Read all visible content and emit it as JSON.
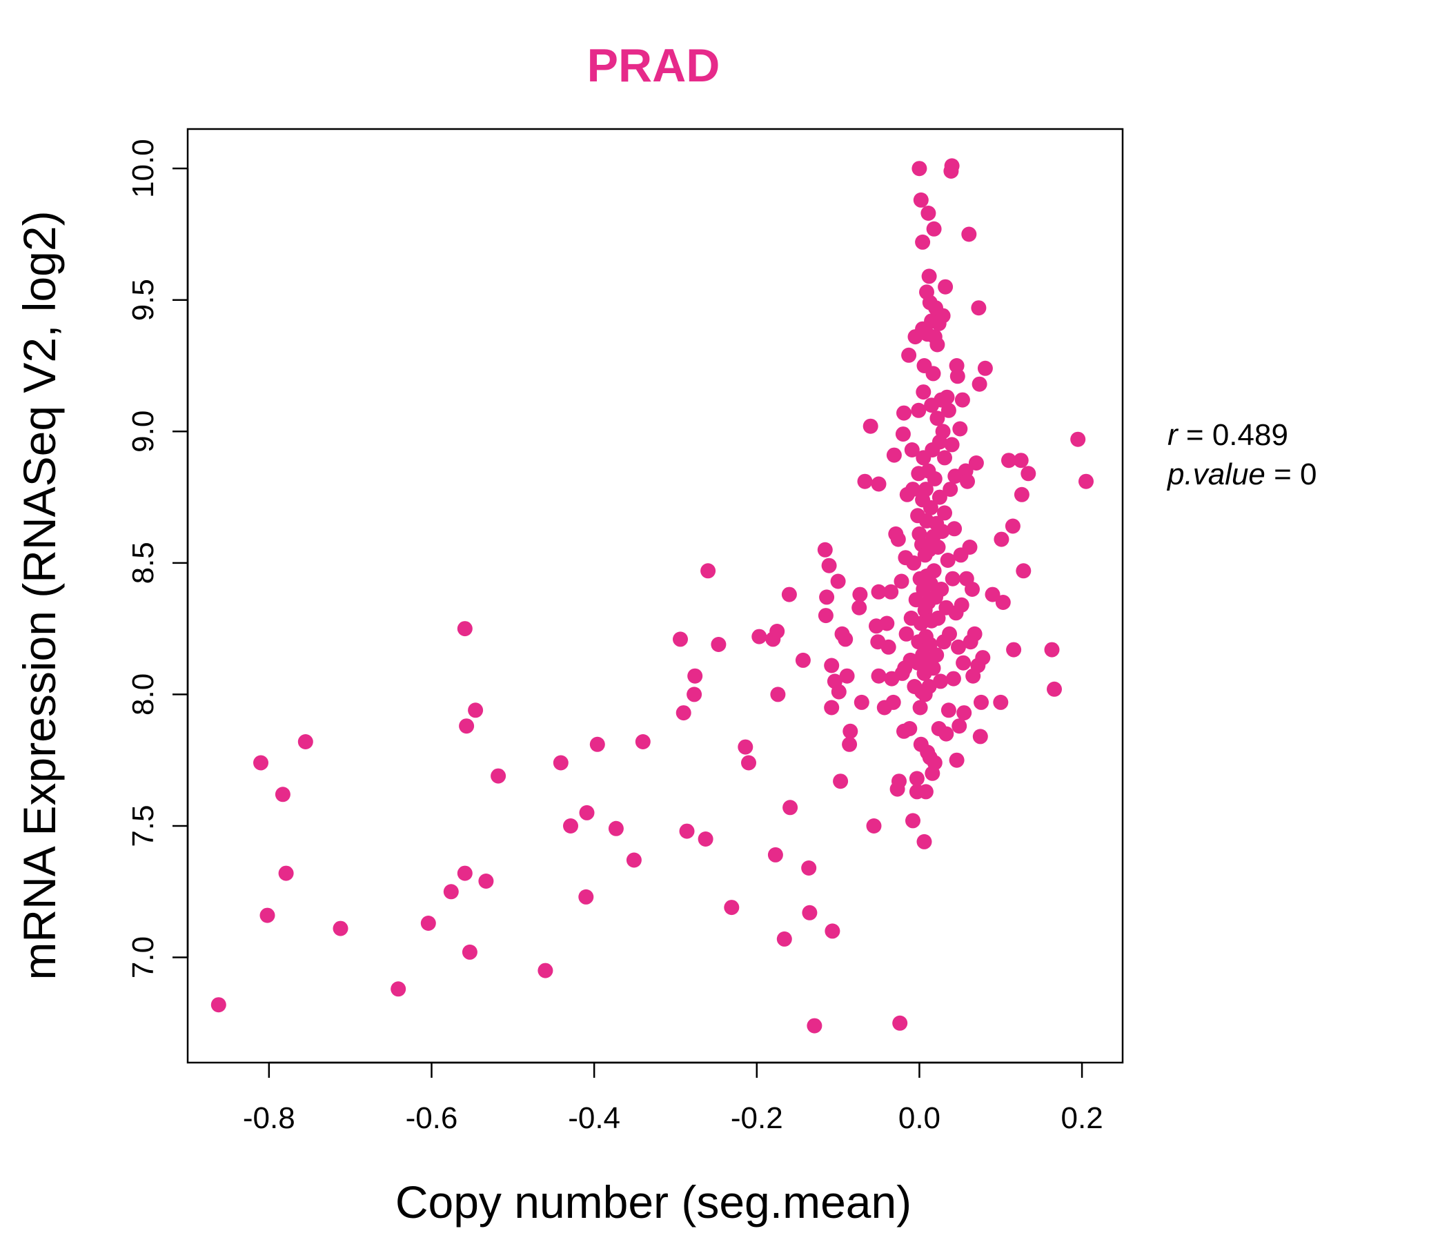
{
  "chart_data": {
    "type": "scatter",
    "title": "PRAD",
    "xlabel": "Copy number (seg.mean)",
    "ylabel": "mRNA Expression (RNASeq V2, log2)",
    "xlim": [
      -0.9,
      0.25
    ],
    "ylim": [
      6.6,
      10.15
    ],
    "xticks": [
      -0.8,
      -0.6,
      -0.4,
      -0.2,
      0.0,
      0.2
    ],
    "xtick_labels": [
      "-0.8",
      "-0.6",
      "-0.4",
      "-0.2",
      "0.0",
      "0.2"
    ],
    "yticks": [
      7.0,
      7.5,
      8.0,
      8.5,
      9.0,
      9.5,
      10.0
    ],
    "ytick_labels": [
      "7.0",
      "7.5",
      "8.0",
      "8.5",
      "9.0",
      "9.5",
      "10.0"
    ],
    "grid": false,
    "colors": {
      "points": "#e62a8a",
      "title": "#e62a8a",
      "axis": "#000000"
    },
    "annotations": {
      "r_label": "r",
      "r_value": "0.489",
      "p_label": "p.value",
      "p_value": "0"
    },
    "series": [
      {
        "points": [
          [
            -0.862,
            6.82
          ],
          [
            -0.81,
            7.74
          ],
          [
            -0.802,
            7.16
          ],
          [
            -0.783,
            7.62
          ],
          [
            -0.779,
            7.32
          ],
          [
            -0.755,
            7.82
          ],
          [
            -0.712,
            7.11
          ],
          [
            -0.641,
            6.88
          ],
          [
            -0.604,
            7.13
          ],
          [
            -0.576,
            7.25
          ],
          [
            -0.559,
            8.25
          ],
          [
            -0.559,
            7.32
          ],
          [
            -0.557,
            7.88
          ],
          [
            -0.553,
            7.02
          ],
          [
            -0.546,
            7.94
          ],
          [
            -0.533,
            7.29
          ],
          [
            -0.518,
            7.69
          ],
          [
            -0.46,
            6.95
          ],
          [
            -0.441,
            7.74
          ],
          [
            -0.429,
            7.5
          ],
          [
            -0.41,
            7.23
          ],
          [
            -0.409,
            7.55
          ],
          [
            -0.396,
            7.81
          ],
          [
            -0.373,
            7.49
          ],
          [
            -0.351,
            7.37
          ],
          [
            -0.34,
            7.82
          ],
          [
            -0.294,
            8.21
          ],
          [
            -0.29,
            7.93
          ],
          [
            -0.286,
            7.48
          ],
          [
            -0.277,
            8.0
          ],
          [
            -0.276,
            8.07
          ],
          [
            -0.263,
            7.45
          ],
          [
            -0.26,
            8.47
          ],
          [
            -0.247,
            8.19
          ],
          [
            -0.231,
            7.19
          ],
          [
            -0.214,
            7.8
          ],
          [
            -0.21,
            7.74
          ],
          [
            -0.197,
            8.22
          ],
          [
            -0.18,
            8.21
          ],
          [
            -0.177,
            7.39
          ],
          [
            -0.175,
            8.24
          ],
          [
            -0.174,
            8.0
          ],
          [
            -0.166,
            7.07
          ],
          [
            -0.16,
            8.38
          ],
          [
            -0.159,
            7.57
          ],
          [
            -0.143,
            8.13
          ],
          [
            -0.136,
            7.34
          ],
          [
            -0.135,
            7.17
          ],
          [
            -0.129,
            6.74
          ],
          [
            -0.116,
            8.55
          ],
          [
            -0.114,
            8.37
          ],
          [
            -0.115,
            8.3
          ],
          [
            -0.111,
            8.49
          ],
          [
            -0.108,
            8.11
          ],
          [
            -0.108,
            7.95
          ],
          [
            -0.107,
            7.1
          ],
          [
            -0.104,
            8.05
          ],
          [
            -0.1,
            8.43
          ],
          [
            -0.099,
            8.01
          ],
          [
            -0.097,
            7.67
          ],
          [
            -0.095,
            8.23
          ],
          [
            -0.091,
            8.21
          ],
          [
            -0.089,
            8.07
          ],
          [
            -0.086,
            7.81
          ],
          [
            -0.085,
            7.86
          ],
          [
            -0.074,
            8.33
          ],
          [
            -0.073,
            8.38
          ],
          [
            -0.071,
            7.97
          ],
          [
            -0.067,
            8.81
          ],
          [
            -0.06,
            9.02
          ],
          [
            -0.056,
            7.5
          ],
          [
            -0.053,
            8.26
          ],
          [
            -0.051,
            8.2
          ],
          [
            -0.05,
            8.8
          ],
          [
            -0.05,
            8.07
          ],
          [
            -0.05,
            8.39
          ],
          [
            -0.043,
            7.95
          ],
          [
            -0.04,
            8.27
          ],
          [
            -0.038,
            8.18
          ],
          [
            -0.035,
            8.39
          ],
          [
            -0.034,
            8.06
          ],
          [
            -0.032,
            7.97
          ],
          [
            -0.031,
            8.91
          ],
          [
            -0.029,
            8.61
          ],
          [
            -0.027,
            7.64
          ],
          [
            -0.026,
            8.59
          ],
          [
            -0.025,
            7.67
          ],
          [
            -0.024,
            6.75
          ],
          [
            -0.022,
            8.43
          ],
          [
            -0.021,
            8.08
          ],
          [
            -0.02,
            8.99
          ],
          [
            -0.019,
            7.86
          ],
          [
            -0.019,
            9.07
          ],
          [
            -0.018,
            8.1
          ],
          [
            -0.017,
            8.52
          ],
          [
            -0.016,
            8.23
          ],
          [
            -0.015,
            8.76
          ],
          [
            -0.013,
            9.29
          ],
          [
            -0.012,
            7.87
          ],
          [
            -0.011,
            8.13
          ],
          [
            -0.01,
            8.29
          ],
          [
            -0.009,
            8.93
          ],
          [
            -0.008,
            7.52
          ],
          [
            -0.008,
            8.78
          ],
          [
            -0.007,
            8.5
          ],
          [
            -0.006,
            8.03
          ],
          [
            -0.005,
            9.36
          ],
          [
            -0.004,
            8.36
          ],
          [
            -0.003,
            7.63
          ],
          [
            -0.003,
            7.68
          ],
          [
            -0.002,
            8.12
          ],
          [
            -0.002,
            8.68
          ],
          [
            -0.001,
            8.84
          ],
          [
            -0.001,
            9.08
          ],
          [
            -0.001,
            8.2
          ],
          [
            0.0,
            10.0
          ],
          [
            0.0,
            8.61
          ],
          [
            0.001,
            7.95
          ],
          [
            0.001,
            8.44
          ],
          [
            0.002,
            7.81
          ],
          [
            0.002,
            9.88
          ],
          [
            0.002,
            8.27
          ],
          [
            0.003,
            8.01
          ],
          [
            0.003,
            8.57
          ],
          [
            0.004,
            9.72
          ],
          [
            0.004,
            9.39
          ],
          [
            0.004,
            8.15
          ],
          [
            0.004,
            8.74
          ],
          [
            0.005,
            9.15
          ],
          [
            0.005,
            8.4
          ],
          [
            0.005,
            8.9
          ],
          [
            0.006,
            7.44
          ],
          [
            0.006,
            8.08
          ],
          [
            0.006,
            9.25
          ],
          [
            0.007,
            8.32
          ],
          [
            0.007,
            8.53
          ],
          [
            0.007,
            8.0
          ],
          [
            0.008,
            7.63
          ],
          [
            0.008,
            8.22
          ],
          [
            0.008,
            8.78
          ],
          [
            0.009,
            9.53
          ],
          [
            0.009,
            8.66
          ],
          [
            0.009,
            8.45
          ],
          [
            0.01,
            8.12
          ],
          [
            0.01,
            9.37
          ],
          [
            0.01,
            7.78
          ],
          [
            0.011,
            9.83
          ],
          [
            0.011,
            8.35
          ],
          [
            0.011,
            8.85
          ],
          [
            0.012,
            8.03
          ],
          [
            0.012,
            9.59
          ],
          [
            0.012,
            8.55
          ],
          [
            0.013,
            9.49
          ],
          [
            0.013,
            7.76
          ],
          [
            0.013,
            8.19
          ],
          [
            0.014,
            8.71
          ],
          [
            0.014,
            8.42
          ],
          [
            0.015,
            9.1
          ],
          [
            0.015,
            9.42
          ],
          [
            0.015,
            8.28
          ],
          [
            0.016,
            8.93
          ],
          [
            0.016,
            7.7
          ],
          [
            0.017,
            9.22
          ],
          [
            0.017,
            8.6
          ],
          [
            0.017,
            8.1
          ],
          [
            0.018,
            9.77
          ],
          [
            0.018,
            8.47
          ],
          [
            0.019,
            9.36
          ],
          [
            0.019,
            8.82
          ],
          [
            0.019,
            7.74
          ],
          [
            0.02,
            9.47
          ],
          [
            0.02,
            8.37
          ],
          [
            0.021,
            8.15
          ],
          [
            0.021,
            8.65
          ],
          [
            0.022,
            9.05
          ],
          [
            0.022,
            9.33
          ],
          [
            0.023,
            8.29
          ],
          [
            0.023,
            8.56
          ],
          [
            0.024,
            9.41
          ],
          [
            0.024,
            7.87
          ],
          [
            0.025,
            8.96
          ],
          [
            0.025,
            8.75
          ],
          [
            0.026,
            8.05
          ],
          [
            0.027,
            9.12
          ],
          [
            0.027,
            8.4
          ],
          [
            0.028,
            8.62
          ],
          [
            0.029,
            9.0
          ],
          [
            0.029,
            9.44
          ],
          [
            0.03,
            8.2
          ],
          [
            0.031,
            8.69
          ],
          [
            0.031,
            8.9
          ],
          [
            0.032,
            9.55
          ],
          [
            0.033,
            7.85
          ],
          [
            0.033,
            8.33
          ],
          [
            0.034,
            9.13
          ],
          [
            0.035,
            8.51
          ],
          [
            0.036,
            9.08
          ],
          [
            0.036,
            7.94
          ],
          [
            0.037,
            8.23
          ],
          [
            0.038,
            8.78
          ],
          [
            0.039,
            9.99
          ],
          [
            0.04,
            10.01
          ],
          [
            0.04,
            8.95
          ],
          [
            0.041,
            8.44
          ],
          [
            0.042,
            8.06
          ],
          [
            0.043,
            8.63
          ],
          [
            0.044,
            8.83
          ],
          [
            0.045,
            8.31
          ],
          [
            0.046,
            7.75
          ],
          [
            0.046,
            9.25
          ],
          [
            0.047,
            9.21
          ],
          [
            0.048,
            8.18
          ],
          [
            0.049,
            7.88
          ],
          [
            0.05,
            9.01
          ],
          [
            0.051,
            8.53
          ],
          [
            0.052,
            8.34
          ],
          [
            0.053,
            9.12
          ],
          [
            0.054,
            8.12
          ],
          [
            0.055,
            7.93
          ],
          [
            0.057,
            8.85
          ],
          [
            0.058,
            8.44
          ],
          [
            0.059,
            8.81
          ],
          [
            0.061,
            9.75
          ],
          [
            0.062,
            8.56
          ],
          [
            0.063,
            8.2
          ],
          [
            0.065,
            8.4
          ],
          [
            0.066,
            8.07
          ],
          [
            0.068,
            8.23
          ],
          [
            0.07,
            8.88
          ],
          [
            0.072,
            8.11
          ],
          [
            0.073,
            9.47
          ],
          [
            0.074,
            9.18
          ],
          [
            0.075,
            7.84
          ],
          [
            0.076,
            7.97
          ],
          [
            0.078,
            8.14
          ],
          [
            0.081,
            9.24
          ],
          [
            0.09,
            8.38
          ],
          [
            0.1,
            7.97
          ],
          [
            0.101,
            8.59
          ],
          [
            0.103,
            8.35
          ],
          [
            0.11,
            8.89
          ],
          [
            0.115,
            8.64
          ],
          [
            0.116,
            8.17
          ],
          [
            0.125,
            8.89
          ],
          [
            0.126,
            8.76
          ],
          [
            0.128,
            8.47
          ],
          [
            0.134,
            8.84
          ],
          [
            0.163,
            8.17
          ],
          [
            0.166,
            8.02
          ],
          [
            0.195,
            8.97
          ],
          [
            0.205,
            8.81
          ]
        ]
      }
    ]
  }
}
